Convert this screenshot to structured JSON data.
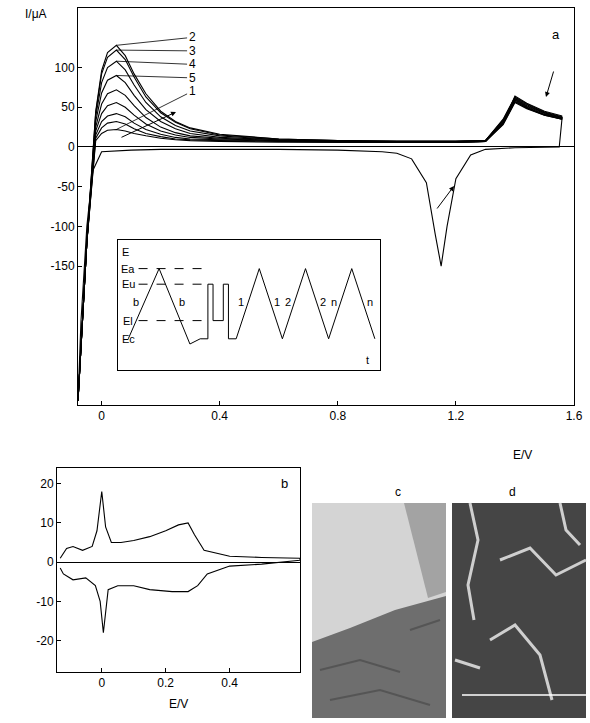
{
  "chart_data": [
    {
      "type": "line",
      "title": "a",
      "x_label": "E/V",
      "y_label": "I/μA",
      "color": "#000000",
      "xlim": [
        -0.08,
        1.6
      ],
      "ylim": [
        -325,
        175
      ],
      "xticks": [
        0,
        0.4,
        0.8,
        1.2,
        1.6
      ],
      "yticks": [
        -150,
        -100,
        -50,
        0,
        50,
        100
      ],
      "x": [
        -0.08,
        -0.05,
        -0.02,
        0,
        0.02,
        0.05,
        0.08,
        0.11,
        0.15,
        0.2,
        0.25,
        0.3,
        0.4,
        0.6,
        0.8,
        1,
        1.2,
        1.3,
        1.36,
        1.4,
        1.44,
        1.5,
        1.56
      ],
      "series": [
        {
          "name": "1",
          "values": [
            -320,
            -120,
            8,
            17,
            21,
            22,
            20,
            17,
            14,
            11,
            9,
            8,
            7,
            6,
            6,
            6,
            6,
            7,
            30,
            64,
            55,
            45,
            39
          ]
        },
        {
          "name": "2",
          "values": [
            -320,
            -120,
            45,
            96,
            119,
            128,
            115,
            92,
            67,
            45,
            32,
            24,
            16,
            10,
            8,
            7,
            7,
            8,
            35,
            63,
            54,
            44,
            38
          ]
        },
        {
          "name": "3",
          "values": [
            -320,
            -120,
            43,
            92,
            113,
            122,
            110,
            88,
            63,
            43,
            31,
            23,
            15,
            10,
            8,
            7,
            7,
            8,
            34,
            62,
            53,
            43,
            37
          ]
        },
        {
          "name": "4",
          "values": [
            -320,
            -120,
            38,
            81,
            100,
            108,
            97,
            78,
            56,
            38,
            27,
            20,
            14,
            9,
            8,
            7,
            7,
            8,
            33,
            61,
            52,
            43,
            37
          ]
        },
        {
          "name": "5",
          "values": [
            -320,
            -120,
            32,
            68,
            84,
            90,
            81,
            65,
            47,
            32,
            23,
            17,
            12,
            9,
            7,
            7,
            7,
            8,
            32,
            60,
            51,
            42,
            36
          ]
        },
        {
          "values": [
            -320,
            -120,
            25,
            54,
            67,
            72,
            65,
            52,
            37,
            25,
            18,
            14,
            11,
            8,
            7,
            6,
            6,
            7,
            31,
            59,
            50,
            41,
            36
          ]
        },
        {
          "values": [
            -320,
            -120,
            20,
            42,
            52,
            56,
            50,
            40,
            29,
            20,
            15,
            12,
            10,
            8,
            7,
            6,
            6,
            7,
            30,
            58,
            49,
            41,
            35
          ]
        },
        {
          "values": [
            -320,
            -120,
            15,
            32,
            39,
            42,
            38,
            30,
            22,
            16,
            12,
            10,
            9,
            7,
            6,
            6,
            6,
            7,
            29,
            57,
            49,
            40,
            35
          ]
        },
        {
          "values": [
            -320,
            -120,
            11,
            24,
            30,
            32,
            29,
            23,
            17,
            13,
            10,
            9,
            8,
            7,
            6,
            6,
            6,
            7,
            28,
            56,
            48,
            40,
            35
          ]
        },
        {
          "x": [
            1.56,
            1.55,
            1.4,
            1.3,
            1.25,
            1.2,
            1.17,
            1.15,
            1.13,
            1.1,
            1.05,
            1,
            0.95,
            0.8,
            0.6,
            0.4,
            0.2,
            0.1,
            0,
            -0.03,
            -0.05,
            -0.07,
            -0.08
          ],
          "values": [
            38,
            0,
            -1,
            -3,
            -10,
            -40,
            -100,
            -150,
            -110,
            -45,
            -15,
            -8,
            -6,
            -4,
            -3,
            -3,
            -3,
            -4,
            -6,
            -30,
            -100,
            -220,
            -320
          ]
        }
      ]
    },
    {
      "type": "line",
      "color": "#000000",
      "tick_labels": false,
      "xlim": [
        0,
        102
      ],
      "ylim": [
        0,
        100
      ],
      "series": [
        {
          "x": [
            4,
            16,
            28,
            32,
            35,
            35,
            37,
            37,
            41,
            41,
            43,
            43,
            46,
            55,
            64,
            73,
            82,
            91,
            100
          ],
          "values": [
            24,
            78,
            20,
            24,
            24,
            66,
            66,
            38,
            38,
            66,
            66,
            24,
            24,
            78,
            24,
            78,
            24,
            78,
            24
          ]
        },
        {
          "x": [
            8,
            35
          ],
          "values": [
            78,
            78
          ],
          "line_style": "dashed"
        },
        {
          "x": [
            8,
            35
          ],
          "values": [
            66,
            66
          ],
          "line_style": "dashed"
        },
        {
          "x": [
            8,
            35
          ],
          "values": [
            38,
            38
          ],
          "line_style": "dashed"
        }
      ],
      "annotations": [
        {
          "text": "E",
          "x": 3,
          "y": 91
        },
        {
          "text": "Ea",
          "x": 4,
          "y": 78
        },
        {
          "text": "Eu",
          "x": 4,
          "y": 66
        },
        {
          "text": "El",
          "x": 4,
          "y": 38
        },
        {
          "text": "Ec",
          "x": 4,
          "y": 24
        },
        {
          "text": "t",
          "x": 97,
          "y": 8
        },
        {
          "text": "b",
          "x": 7,
          "y": 52
        },
        {
          "text": "b",
          "x": 25,
          "y": 52
        },
        {
          "text": "1",
          "x": 48,
          "y": 52
        },
        {
          "text": "1",
          "x": 62,
          "y": 52
        },
        {
          "text": "2",
          "x": 66,
          "y": 52
        },
        {
          "text": "2",
          "x": 80,
          "y": 52
        },
        {
          "text": "n",
          "x": 84,
          "y": 52
        },
        {
          "text": "n",
          "x": 98,
          "y": 52
        }
      ]
    },
    {
      "type": "line",
      "title": "b",
      "x_label": "E/V",
      "color": "#000000",
      "xlim": [
        -0.14,
        0.62
      ],
      "ylim": [
        -28,
        24
      ],
      "xticks": [
        0,
        0.2,
        0.4
      ],
      "yticks": [
        -20,
        -10,
        0,
        10,
        20
      ],
      "series": [
        {
          "x": [
            -0.13,
            -0.11,
            -0.09,
            -0.06,
            -0.03,
            -0.015,
            0,
            0.012,
            0.03,
            0.06,
            0.1,
            0.15,
            0.2,
            0.24,
            0.27,
            0.29,
            0.32,
            0.4,
            0.5,
            0.62,
            0.62,
            0.5,
            0.4,
            0.33,
            0.3,
            0.27,
            0.22,
            0.15,
            0.1,
            0.05,
            0.02,
            0.005,
            -0.005,
            -0.02,
            -0.05,
            -0.09,
            -0.12,
            -0.13
          ],
          "values": [
            1,
            3.5,
            4,
            3,
            4,
            8,
            18,
            9,
            5,
            5,
            5.5,
            6.5,
            8,
            9.5,
            10,
            7,
            3,
            1.5,
            1.2,
            1,
            0.5,
            -0.5,
            -1,
            -3,
            -6,
            -7.5,
            -7.5,
            -7,
            -6,
            -6,
            -7,
            -18,
            -10,
            -6,
            -4,
            -4.5,
            -3,
            -1.5
          ]
        }
      ]
    },
    {
      "type": "image",
      "title": "c"
    },
    {
      "type": "image",
      "title": "d"
    }
  ]
}
